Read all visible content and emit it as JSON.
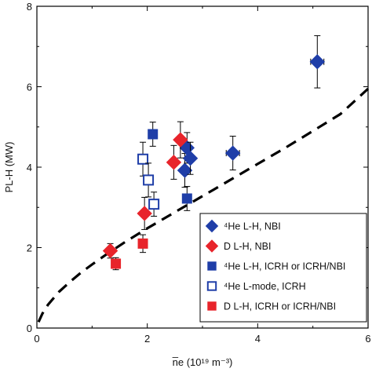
{
  "chart_data": {
    "type": "scatter",
    "xlabel": "n̅e (10¹⁹ m⁻³)",
    "ylabel": "PL-H (MW)",
    "xlim": [
      0,
      6
    ],
    "ylim": [
      0,
      8
    ],
    "xticks": [
      0,
      2,
      4,
      6
    ],
    "yticks": [
      0,
      2,
      4,
      6,
      8
    ],
    "xtick_labels": [
      "0",
      "2",
      "4",
      "6"
    ],
    "ytick_labels": [
      "0",
      "2",
      "4",
      "6",
      "8"
    ],
    "grid": false,
    "legend_position": "bottom-right",
    "series": [
      {
        "name": "⁴He L-H, NBI",
        "marker": "diamond",
        "filled": true,
        "color": "#1f3ea8",
        "points": [
          {
            "x": 2.68,
            "y": 3.92,
            "yerr": 0.42
          },
          {
            "x": 2.72,
            "y": 4.48,
            "yerr": 0.38
          },
          {
            "x": 2.78,
            "y": 4.22,
            "yerr": 0.4
          },
          {
            "x": 3.55,
            "y": 4.35,
            "yerr": 0.42,
            "xerr": 0.12
          },
          {
            "x": 5.08,
            "y": 6.62,
            "yerr": 0.65,
            "xerr": 0.12
          }
        ]
      },
      {
        "name": "D L-H, NBI",
        "marker": "diamond",
        "filled": true,
        "color": "#e8242b",
        "points": [
          {
            "x": 1.33,
            "y": 1.92,
            "yerr": 0.18
          },
          {
            "x": 1.95,
            "y": 2.85,
            "yerr": 0.4
          },
          {
            "x": 2.48,
            "y": 4.12,
            "yerr": 0.42
          },
          {
            "x": 2.6,
            "y": 4.68,
            "yerr": 0.45
          }
        ]
      },
      {
        "name": "⁴He L-H, ICRH or ICRH/NBI",
        "marker": "square",
        "filled": true,
        "color": "#1f3ea8",
        "points": [
          {
            "x": 2.1,
            "y": 4.82,
            "yerr": 0.3
          },
          {
            "x": 2.72,
            "y": 3.22,
            "yerr": 0.3
          }
        ]
      },
      {
        "name": "⁴He L-mode, ICRH",
        "marker": "square",
        "filled": false,
        "color": "#1f3ea8",
        "points": [
          {
            "x": 1.92,
            "y": 4.2,
            "yerr": 0.42
          },
          {
            "x": 2.02,
            "y": 3.68,
            "yerr": 0.42
          },
          {
            "x": 2.12,
            "y": 3.08,
            "yerr": 0.3
          }
        ]
      },
      {
        "name": "D L-H, ICRH or ICRH/NBI",
        "marker": "square",
        "filled": true,
        "color": "#e8242b",
        "points": [
          {
            "x": 1.43,
            "y": 1.6,
            "yerr": 0.15
          },
          {
            "x": 1.92,
            "y": 2.1,
            "yerr": 0.22
          }
        ]
      }
    ],
    "fit_curve": {
      "style": "dashed",
      "color": "#000000",
      "x": [
        0.03,
        0.1,
        0.2,
        0.4,
        0.6,
        0.8,
        1.0,
        1.3,
        1.6,
        2.0,
        2.4,
        2.8,
        3.2,
        3.6,
        4.0,
        4.5,
        5.0,
        5.5,
        6.0
      ],
      "y": [
        0.15,
        0.36,
        0.58,
        0.9,
        1.15,
        1.38,
        1.58,
        1.87,
        2.14,
        2.48,
        2.8,
        3.12,
        3.44,
        3.76,
        4.08,
        4.48,
        4.9,
        5.32,
        5.95
      ]
    }
  }
}
